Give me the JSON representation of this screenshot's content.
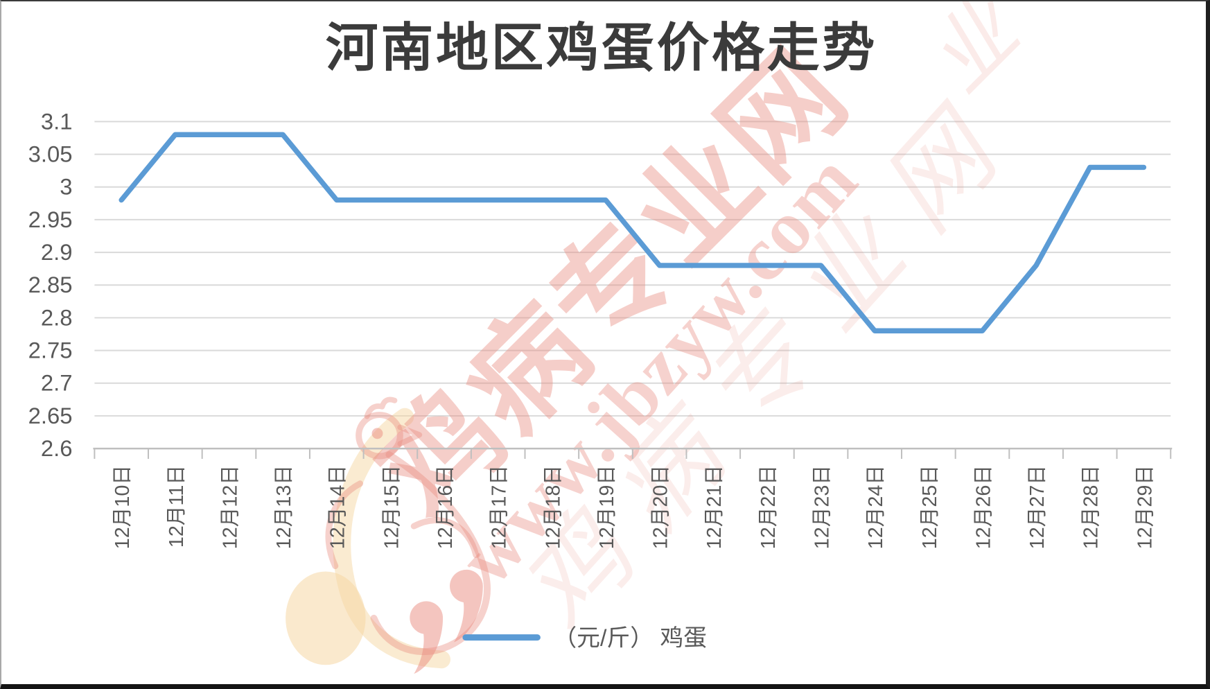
{
  "chart_data": {
    "type": "line",
    "title": "河南地区鸡蛋价格走势",
    "categories": [
      "12月10日",
      "12月11日",
      "12月12日",
      "12月13日",
      "12月14日",
      "12月15日",
      "12月16日",
      "12月17日",
      "12月18日",
      "12月19日",
      "12月20日",
      "12月21日",
      "12月22日",
      "12月23日",
      "12月24日",
      "12月25日",
      "12月26日",
      "12月27日",
      "12月28日",
      "12月29日"
    ],
    "series": [
      {
        "name": "（元/斤） 鸡蛋",
        "values": [
          2.98,
          3.08,
          3.08,
          3.08,
          2.98,
          2.98,
          2.98,
          2.98,
          2.98,
          2.98,
          2.88,
          2.88,
          2.88,
          2.88,
          2.78,
          2.78,
          2.78,
          2.88,
          3.03,
          3.03
        ],
        "color": "#5B9BD5"
      }
    ],
    "xlabel": "",
    "ylabel": "",
    "ylim": [
      2.6,
      3.1
    ],
    "ytick_step": 0.05,
    "yticks": [
      "3.1",
      "3.05",
      "3",
      "2.95",
      "2.9",
      "2.85",
      "2.8",
      "2.75",
      "2.7",
      "2.65",
      "2.6"
    ],
    "grid": true,
    "legend_position": "bottom"
  },
  "legend": {
    "label": "（元/斤） 鸡蛋"
  },
  "watermark": {
    "site_name": "鸡病专业网",
    "url": "www.jbzyw.com"
  },
  "colors": {
    "line": "#5B9BD5",
    "grid": "#D9D9D9",
    "axis": "#BFBFBF",
    "tick_label": "#595959",
    "title": "#3B3B3B",
    "watermark": "#E98C80",
    "watermark_cream": "#F5D7A4"
  }
}
